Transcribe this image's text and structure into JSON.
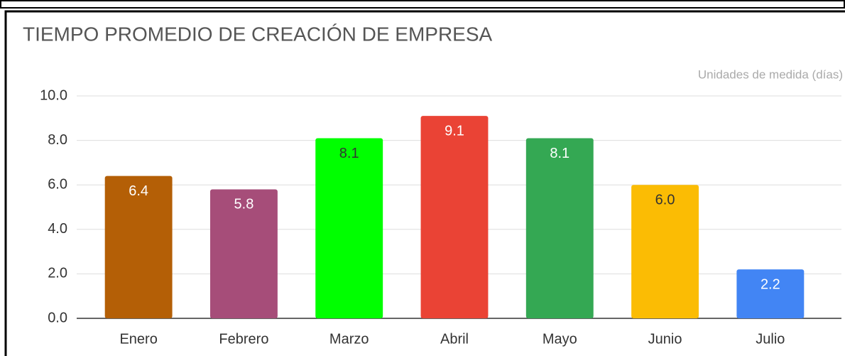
{
  "chart_data": {
    "type": "bar",
    "title": "TIEMPO PROMEDIO DE CREACIÓN DE EMPRESA",
    "subtitle": "Unidades de medida (días)",
    "categories": [
      "Enero",
      "Febrero",
      "Marzo",
      "Abril",
      "Mayo",
      "Junio",
      "Julio"
    ],
    "values": [
      6.4,
      5.8,
      8.1,
      9.1,
      8.1,
      6.0,
      2.2
    ],
    "value_labels": [
      "6.4",
      "5.8",
      "8.1",
      "9.1",
      "8.1",
      "6.0",
      "2.2"
    ],
    "colors": [
      "#b45f06",
      "#a64d79",
      "#00ff00",
      "#ea4335",
      "#34a853",
      "#fbbc04",
      "#4285f4"
    ],
    "ylim": [
      0,
      10
    ],
    "yticks": [
      {
        "value": 0,
        "label": "0.0"
      },
      {
        "value": 2,
        "label": "2.0"
      },
      {
        "value": 4,
        "label": "4.0"
      },
      {
        "value": 6,
        "label": "6.0"
      },
      {
        "value": 8,
        "label": "8.0"
      },
      {
        "value": 10,
        "label": "10.0"
      }
    ],
    "grid": true
  }
}
